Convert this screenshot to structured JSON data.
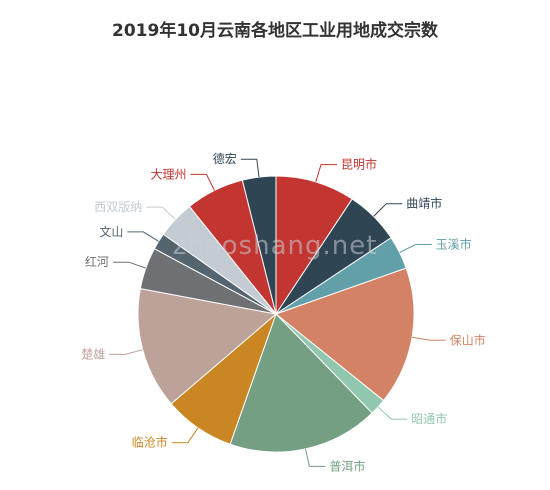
{
  "chart_data": {
    "type": "pie",
    "title": "2019年10月云南各地区工业用地成交宗数",
    "slices": [
      {
        "name": "昆明市",
        "value": 9.5,
        "color": "#c23531"
      },
      {
        "name": "曲靖市",
        "value": 6.5,
        "color": "#2f4554"
      },
      {
        "name": "玉溪市",
        "value": 4.0,
        "color": "#61a0a8"
      },
      {
        "name": "保山市",
        "value": 16.5,
        "color": "#d48265"
      },
      {
        "name": "昭通市",
        "value": 2.0,
        "color": "#91c7ae"
      },
      {
        "name": "普洱市",
        "value": 18.0,
        "color": "#749f83"
      },
      {
        "name": "临沧市",
        "value": 8.5,
        "color": "#ca8622"
      },
      {
        "name": "楚雄",
        "value": 14.5,
        "color": "#bda29a"
      },
      {
        "name": "红河",
        "value": 5.0,
        "color": "#6e7074"
      },
      {
        "name": "文山",
        "value": 2.0,
        "color": "#546570"
      },
      {
        "name": "西双版纳",
        "value": 4.5,
        "color": "#c4ccd3"
      },
      {
        "name": "大理州",
        "value": 7.0,
        "color": "#c23531"
      },
      {
        "name": "德宏",
        "value": 4.0,
        "color": "#2f4554"
      }
    ]
  },
  "watermark": "zhaoshang.net"
}
